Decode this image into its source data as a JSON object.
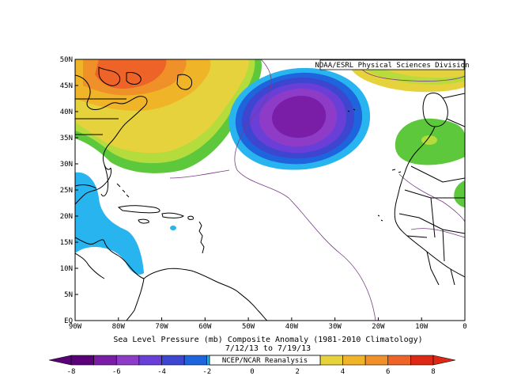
{
  "map": {
    "credit": "NOAA/ESRL Physical Sciences Division",
    "title_line1": "Sea Level Pressure (mb) Composite Anomaly (1981-2010 Climatology)",
    "title_line2": "7/12/13   to 7/19/13",
    "source_label": "NCEP/NCAR Reanalysis",
    "lat_labels": [
      "50N",
      "45N",
      "40N",
      "35N",
      "30N",
      "25N",
      "20N",
      "15N",
      "10N",
      "5N",
      "EQ"
    ],
    "lon_labels": [
      "90W",
      "80W",
      "70W",
      "60W",
      "50W",
      "40W",
      "30W",
      "20W",
      "10W",
      "0"
    ],
    "extent": {
      "lon_min": -90,
      "lon_max": 0,
      "lat_min": 0,
      "lat_max": 50
    },
    "anomaly_centers": [
      {
        "name": "negative-anomaly-center",
        "lon": -38,
        "lat": 39,
        "value": -6
      },
      {
        "name": "positive-anomaly-center",
        "lon": -77,
        "lat": 44,
        "value": 6
      }
    ]
  },
  "colorbar": {
    "tick_labels": [
      "-8",
      "-6",
      "-4",
      "-2",
      "0",
      "2",
      "4",
      "6",
      "8"
    ],
    "bins": [
      {
        "value": -7.5,
        "color": "#5a0078"
      },
      {
        "value": -6.5,
        "color": "#7a1ea8"
      },
      {
        "value": -5.5,
        "color": "#8e3cc8"
      },
      {
        "value": -4.5,
        "color": "#6a3fd8"
      },
      {
        "value": -3.5,
        "color": "#3c46d0"
      },
      {
        "value": -2.5,
        "color": "#1e64dc"
      },
      {
        "value": -1.5,
        "color": "#28b4ee"
      },
      {
        "value": -0.5,
        "color": "#ffffff"
      },
      {
        "value": 0.5,
        "color": "#ffffff"
      },
      {
        "value": 1.5,
        "color": "#5ec83c"
      },
      {
        "value": 2.5,
        "color": "#b4dc3c"
      },
      {
        "value": 3.5,
        "color": "#e6d23c"
      },
      {
        "value": 4.5,
        "color": "#f0b428"
      },
      {
        "value": 5.5,
        "color": "#f09028"
      },
      {
        "value": 6.5,
        "color": "#ee6428"
      },
      {
        "value": 7.5,
        "color": "#dc2814"
      }
    ]
  }
}
